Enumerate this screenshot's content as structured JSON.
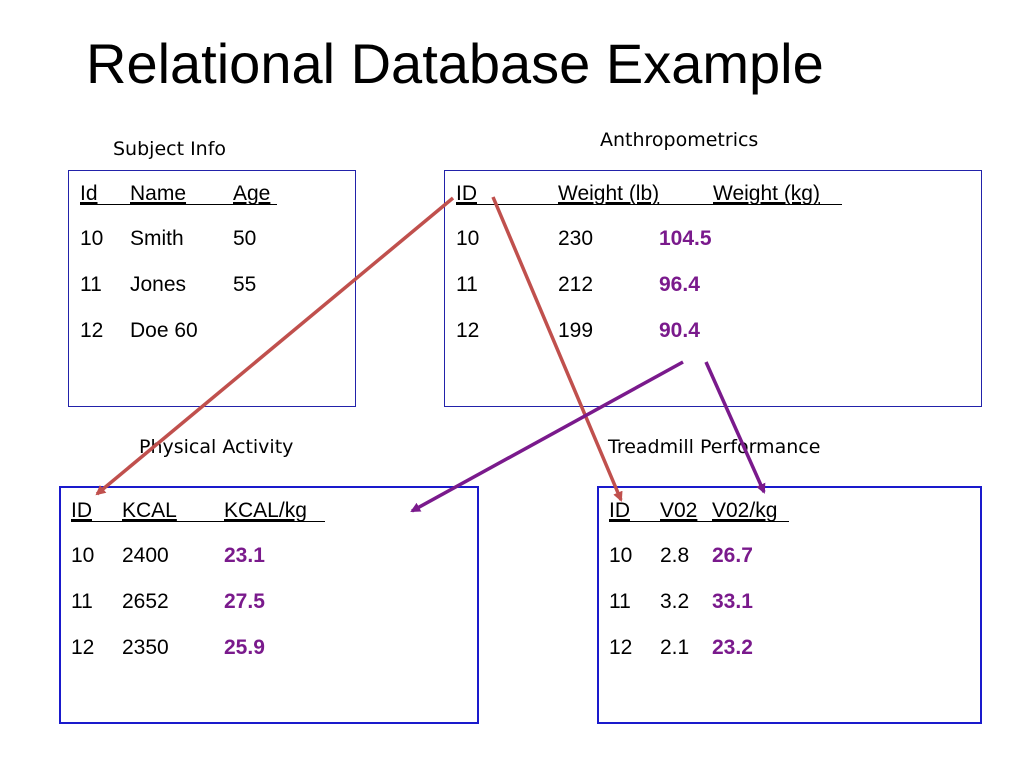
{
  "title": "Relational Database Example",
  "tables": {
    "subject_info": {
      "caption": "Subject Info",
      "columns": [
        "Id",
        "Name",
        "Age"
      ],
      "rows": [
        [
          "10",
          "Smith",
          "50"
        ],
        [
          "11",
          "Jones",
          "55"
        ],
        [
          "12",
          "Doe 60",
          ""
        ]
      ]
    },
    "anthropometrics": {
      "caption": "Anthropometrics",
      "columns": [
        "ID",
        "Weight (lb)",
        "Weight (kg)"
      ],
      "rows": [
        [
          "10",
          "230",
          "104.5"
        ],
        [
          "11",
          "212",
          "96.4"
        ],
        [
          "12",
          "199",
          "90.4"
        ]
      ]
    },
    "physical_activity": {
      "caption": "Physical Activity",
      "columns": [
        "ID",
        "KCAL",
        "KCAL/kg"
      ],
      "rows": [
        [
          "10",
          "2400",
          "23.1"
        ],
        [
          "11",
          "2652",
          "27.5"
        ],
        [
          "12",
          "2350",
          "25.9"
        ]
      ]
    },
    "treadmill_performance": {
      "caption": "Treadmill Performance",
      "columns": [
        "ID",
        "V02",
        "V02/kg"
      ],
      "rows": [
        [
          "10",
          "2.8",
          "26.7"
        ],
        [
          "11",
          "3.2",
          "33.1"
        ],
        [
          "12",
          "2.1",
          "23.2"
        ]
      ]
    }
  },
  "colors": {
    "id_link_arrow": "#c0504d",
    "derived_link_arrow": "#7a1a8c",
    "derived_value_text": "#7a1a8c",
    "box_border": "#1a1acc"
  }
}
